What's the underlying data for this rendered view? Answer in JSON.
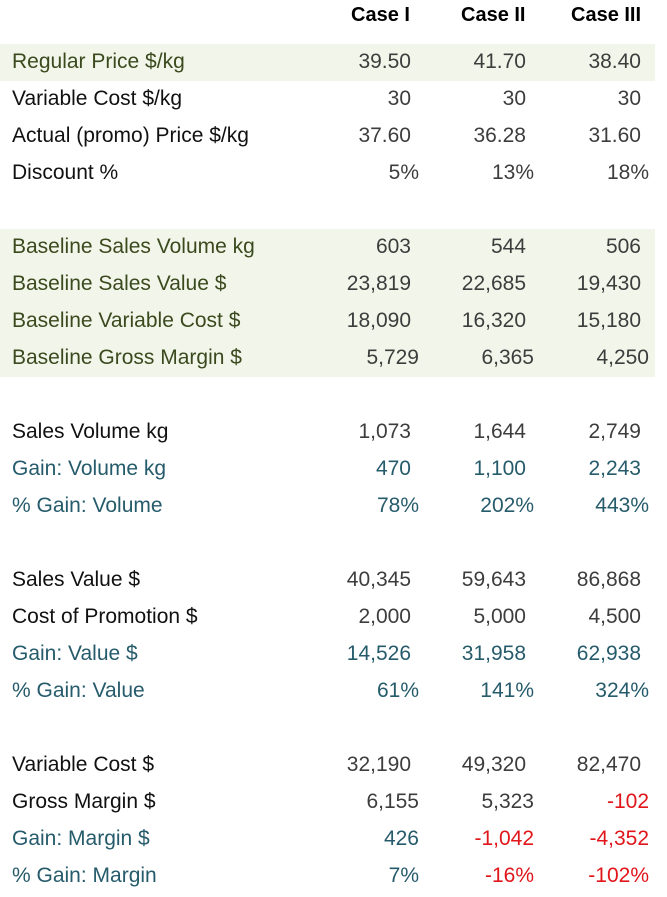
{
  "header": {
    "case1": "Case I",
    "case2": "Case II",
    "case3": "Case III"
  },
  "colors": {
    "band": "#f2f6ea",
    "green_text": "#3b4a1e",
    "blue_text": "#265b6b",
    "negative": "#e0161b"
  },
  "rows": [
    {
      "label": "Regular Price $/kg",
      "values": [
        "39.50",
        "41.70",
        "38.40"
      ]
    },
    {
      "label": "Variable Cost $/kg",
      "values": [
        "30",
        "30",
        "30"
      ]
    },
    {
      "label": "Actual (promo) Price $/kg",
      "values": [
        "37.60",
        "36.28",
        "31.60"
      ]
    },
    {
      "label": "Discount %",
      "values": [
        "5%",
        "13%",
        "18%"
      ]
    },
    {
      "label": "Baseline Sales Volume kg",
      "values": [
        "603",
        "544",
        "506"
      ]
    },
    {
      "label": "Baseline Sales Value $",
      "values": [
        "23,819",
        "22,685",
        "19,430"
      ]
    },
    {
      "label": "Baseline Variable Cost $",
      "values": [
        "18,090",
        "16,320",
        "15,180"
      ]
    },
    {
      "label": "Baseline Gross Margin $",
      "values": [
        "5,729",
        "6,365",
        "4,250"
      ]
    },
    {
      "label": "Sales Volume kg",
      "values": [
        "1,073",
        "1,644",
        "2,749"
      ]
    },
    {
      "label": "Gain: Volume kg",
      "values": [
        "470",
        "1,100",
        "2,243"
      ]
    },
    {
      "label": "% Gain: Volume",
      "values": [
        "78%",
        "202%",
        "443%"
      ]
    },
    {
      "label": "Sales Value $",
      "values": [
        "40,345",
        "59,643",
        "86,868"
      ]
    },
    {
      "label": "Cost of Promotion $",
      "values": [
        "2,000",
        "5,000",
        "4,500"
      ]
    },
    {
      "label": "Gain: Value $",
      "values": [
        "14,526",
        "31,958",
        "62,938"
      ]
    },
    {
      "label": "% Gain: Value",
      "values": [
        "61%",
        "141%",
        "324%"
      ]
    },
    {
      "label": "Variable Cost $",
      "values": [
        "32,190",
        "49,320",
        "82,470"
      ]
    },
    {
      "label": "Gross Margin $",
      "values": [
        "6,155",
        "5,323",
        "-102"
      ]
    },
    {
      "label": "Gain: Margin $",
      "values": [
        "426",
        "-1,042",
        "-4,352"
      ]
    },
    {
      "label": "% Gain: Margin",
      "values": [
        "7%",
        "-16%",
        "-102%"
      ]
    }
  ]
}
